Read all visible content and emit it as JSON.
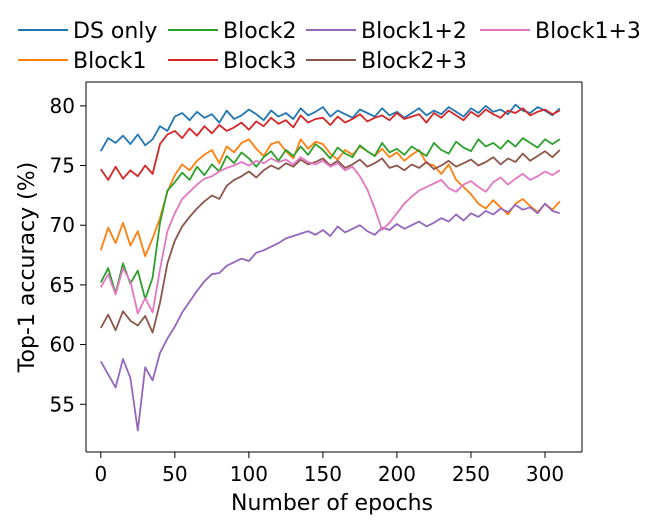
{
  "chart_data": {
    "type": "line",
    "title": "",
    "xlabel": "Number of epochs",
    "ylabel": "Top-1 accuracy (%)",
    "xlim": [
      -10,
      325
    ],
    "ylim": [
      51,
      82
    ],
    "xticks": [
      0,
      50,
      100,
      150,
      200,
      250,
      300
    ],
    "yticks": [
      55,
      60,
      65,
      70,
      75,
      80
    ],
    "grid": false,
    "legend_position": "top",
    "series": [
      {
        "name": "DS only",
        "color": "#1f77b4",
        "x": [
          0,
          5,
          10,
          15,
          20,
          25,
          30,
          35,
          40,
          45,
          50,
          55,
          60,
          65,
          70,
          75,
          80,
          85,
          90,
          95,
          100,
          105,
          110,
          115,
          120,
          125,
          130,
          135,
          140,
          145,
          150,
          155,
          160,
          165,
          170,
          175,
          180,
          185,
          190,
          195,
          200,
          205,
          210,
          215,
          220,
          225,
          230,
          235,
          240,
          245,
          250,
          255,
          260,
          265,
          270,
          275,
          280,
          285,
          290,
          295,
          300,
          305,
          310
        ],
        "y": [
          76.2,
          77.3,
          76.9,
          77.5,
          76.8,
          77.6,
          76.7,
          77.2,
          78.3,
          77.9,
          79.1,
          79.4,
          78.8,
          79.5,
          79.0,
          79.3,
          78.6,
          79.6,
          78.9,
          79.2,
          79.7,
          79.3,
          78.8,
          79.6,
          79.1,
          79.4,
          78.9,
          79.8,
          79.2,
          79.5,
          79.9,
          79.1,
          79.6,
          79.3,
          79.0,
          79.7,
          79.4,
          79.1,
          79.8,
          79.2,
          79.5,
          79.0,
          79.4,
          79.8,
          79.2,
          79.6,
          79.3,
          79.9,
          79.5,
          79.1,
          79.8,
          79.4,
          80.0,
          79.5,
          79.7,
          79.3,
          80.1,
          79.6,
          79.4,
          79.9,
          79.6,
          79.2,
          79.8
        ]
      },
      {
        "name": "Block1",
        "color": "#ff7f0e",
        "x": [
          0,
          5,
          10,
          15,
          20,
          25,
          30,
          35,
          40,
          45,
          50,
          55,
          60,
          65,
          70,
          75,
          80,
          85,
          90,
          95,
          100,
          105,
          110,
          115,
          120,
          125,
          130,
          135,
          140,
          145,
          150,
          155,
          160,
          165,
          170,
          175,
          180,
          185,
          190,
          195,
          200,
          205,
          210,
          215,
          220,
          225,
          230,
          235,
          240,
          245,
          250,
          255,
          260,
          265,
          270,
          275,
          280,
          285,
          290,
          295,
          300,
          305,
          310
        ],
        "y": [
          67.9,
          69.8,
          68.5,
          70.2,
          68.3,
          69.5,
          67.4,
          68.9,
          70.6,
          72.8,
          74.2,
          75.1,
          74.6,
          75.4,
          75.9,
          76.3,
          75.2,
          76.6,
          76.1,
          76.9,
          77.2,
          76.4,
          75.8,
          76.8,
          77.0,
          76.2,
          75.6,
          77.2,
          76.4,
          77.0,
          76.8,
          76.0,
          75.5,
          76.3,
          75.9,
          76.6,
          76.2,
          75.8,
          76.4,
          75.7,
          76.1,
          75.4,
          75.9,
          76.3,
          75.2,
          75.0,
          74.3,
          75.1,
          73.8,
          73.2,
          72.6,
          71.8,
          71.4,
          72.1,
          71.5,
          70.9,
          71.8,
          72.2,
          71.6,
          71.1,
          71.8,
          71.3,
          72.0
        ]
      },
      {
        "name": "Block2",
        "color": "#2ca02c",
        "x": [
          0,
          5,
          10,
          15,
          20,
          25,
          30,
          35,
          40,
          45,
          50,
          55,
          60,
          65,
          70,
          75,
          80,
          85,
          90,
          95,
          100,
          105,
          110,
          115,
          120,
          125,
          130,
          135,
          140,
          145,
          150,
          155,
          160,
          165,
          170,
          175,
          180,
          185,
          190,
          195,
          200,
          205,
          210,
          215,
          220,
          225,
          230,
          235,
          240,
          245,
          250,
          255,
          260,
          265,
          270,
          275,
          280,
          285,
          290,
          295,
          300,
          305,
          310
        ],
        "y": [
          65.2,
          66.4,
          64.3,
          66.8,
          65.1,
          66.2,
          63.8,
          65.6,
          70.2,
          72.9,
          73.6,
          74.4,
          73.8,
          74.9,
          74.2,
          75.1,
          74.5,
          75.8,
          75.2,
          76.1,
          75.6,
          74.9,
          75.7,
          76.2,
          75.4,
          76.3,
          75.8,
          76.6,
          75.9,
          76.8,
          76.3,
          75.6,
          76.5,
          76.0,
          75.7,
          76.7,
          76.2,
          75.8,
          76.9,
          76.1,
          76.4,
          75.9,
          76.6,
          76.2,
          75.8,
          76.9,
          76.3,
          76.0,
          77.0,
          76.5,
          76.2,
          77.2,
          76.6,
          76.9,
          76.4,
          77.1,
          76.6,
          77.3,
          76.9,
          76.5,
          77.2,
          76.8,
          77.2
        ]
      },
      {
        "name": "Block3",
        "color": "#d62728",
        "x": [
          0,
          5,
          10,
          15,
          20,
          25,
          30,
          35,
          40,
          45,
          50,
          55,
          60,
          65,
          70,
          75,
          80,
          85,
          90,
          95,
          100,
          105,
          110,
          115,
          120,
          125,
          130,
          135,
          140,
          145,
          150,
          155,
          160,
          165,
          170,
          175,
          180,
          185,
          190,
          195,
          200,
          205,
          210,
          215,
          220,
          225,
          230,
          235,
          240,
          245,
          250,
          255,
          260,
          265,
          270,
          275,
          280,
          285,
          290,
          295,
          300,
          305,
          310
        ],
        "y": [
          74.7,
          73.8,
          74.9,
          73.9,
          74.6,
          74.1,
          75.0,
          74.3,
          76.8,
          77.6,
          77.9,
          77.3,
          78.1,
          77.5,
          78.3,
          77.7,
          78.4,
          77.9,
          78.2,
          78.6,
          78.0,
          78.7,
          78.3,
          79.0,
          78.5,
          78.8,
          78.2,
          79.2,
          78.6,
          78.9,
          79.0,
          78.4,
          79.1,
          78.6,
          78.9,
          79.3,
          78.7,
          79.0,
          79.2,
          78.8,
          79.4,
          78.9,
          79.1,
          79.3,
          78.6,
          79.4,
          79.0,
          79.6,
          79.2,
          78.8,
          79.5,
          79.1,
          79.7,
          79.3,
          79.0,
          79.6,
          79.4,
          79.8,
          79.2,
          79.5,
          79.7,
          79.3,
          79.6
        ]
      },
      {
        "name": "Block1+2",
        "color": "#9467bd",
        "x": [
          0,
          5,
          10,
          15,
          20,
          25,
          30,
          35,
          40,
          45,
          50,
          55,
          60,
          65,
          70,
          75,
          80,
          85,
          90,
          95,
          100,
          105,
          110,
          115,
          120,
          125,
          130,
          135,
          140,
          145,
          150,
          155,
          160,
          165,
          170,
          175,
          180,
          185,
          190,
          195,
          200,
          205,
          210,
          215,
          220,
          225,
          230,
          235,
          240,
          245,
          250,
          255,
          260,
          265,
          270,
          275,
          280,
          285,
          290,
          295,
          300,
          305,
          310
        ],
        "y": [
          58.6,
          57.5,
          56.4,
          58.8,
          57.2,
          52.8,
          58.1,
          57.0,
          59.3,
          60.5,
          61.5,
          62.7,
          63.6,
          64.5,
          65.3,
          65.9,
          66.0,
          66.6,
          66.9,
          67.2,
          67.0,
          67.7,
          67.9,
          68.2,
          68.5,
          68.9,
          69.1,
          69.3,
          69.5,
          69.2,
          69.6,
          69.1,
          69.9,
          69.4,
          69.7,
          70.0,
          69.5,
          69.2,
          69.8,
          69.6,
          70.1,
          69.7,
          70.0,
          70.3,
          69.9,
          70.2,
          70.6,
          70.3,
          70.9,
          70.4,
          71.0,
          70.7,
          71.2,
          70.9,
          71.4,
          71.1,
          71.7,
          71.3,
          71.5,
          71.0,
          71.8,
          71.2,
          71.0
        ]
      },
      {
        "name": "Block2+3",
        "color": "#8c564b",
        "x": [
          0,
          5,
          10,
          15,
          20,
          25,
          30,
          35,
          40,
          45,
          50,
          55,
          60,
          65,
          70,
          75,
          80,
          85,
          90,
          95,
          100,
          105,
          110,
          115,
          120,
          125,
          130,
          135,
          140,
          145,
          150,
          155,
          160,
          165,
          170,
          175,
          180,
          185,
          190,
          195,
          200,
          205,
          210,
          215,
          220,
          225,
          230,
          235,
          240,
          245,
          250,
          255,
          260,
          265,
          270,
          275,
          280,
          285,
          290,
          295,
          300,
          305,
          310
        ],
        "y": [
          61.4,
          62.5,
          61.2,
          62.8,
          62.0,
          61.6,
          62.4,
          61.0,
          63.5,
          66.8,
          68.7,
          69.9,
          70.7,
          71.4,
          72.0,
          72.5,
          72.2,
          73.3,
          73.8,
          74.1,
          74.5,
          74.0,
          74.6,
          75.0,
          74.7,
          75.2,
          74.9,
          75.5,
          75.1,
          75.3,
          75.6,
          75.0,
          75.4,
          74.8,
          75.1,
          75.5,
          74.9,
          75.2,
          75.6,
          74.8,
          75.0,
          74.6,
          75.1,
          74.8,
          75.3,
          74.7,
          75.0,
          75.4,
          74.9,
          75.2,
          75.5,
          75.0,
          75.3,
          75.7,
          75.1,
          75.6,
          75.3,
          76.0,
          75.4,
          75.8,
          76.2,
          75.7,
          76.3
        ]
      },
      {
        "name": "Block1+3",
        "color": "#e377c2",
        "x": [
          0,
          5,
          10,
          15,
          20,
          25,
          30,
          35,
          40,
          45,
          50,
          55,
          60,
          65,
          70,
          75,
          80,
          85,
          90,
          95,
          100,
          105,
          110,
          115,
          120,
          125,
          130,
          135,
          140,
          145,
          150,
          155,
          160,
          165,
          170,
          175,
          180,
          185,
          190,
          195,
          200,
          205,
          210,
          215,
          220,
          225,
          230,
          235,
          240,
          245,
          250,
          255,
          260,
          265,
          270,
          275,
          280,
          285,
          290,
          295,
          300,
          305,
          310
        ],
        "y": [
          64.8,
          65.9,
          64.2,
          66.4,
          65.3,
          62.6,
          63.9,
          62.7,
          66.3,
          69.5,
          71.0,
          72.2,
          72.8,
          73.4,
          73.9,
          74.1,
          74.5,
          74.8,
          75.0,
          75.3,
          75.0,
          75.4,
          75.2,
          75.6,
          75.3,
          75.5,
          75.1,
          75.7,
          75.3,
          75.1,
          75.4,
          74.9,
          75.2,
          74.6,
          74.9,
          74.1,
          73.0,
          71.4,
          69.6,
          70.2,
          71.0,
          71.8,
          72.4,
          72.9,
          73.2,
          73.5,
          73.8,
          73.1,
          72.8,
          73.4,
          73.7,
          73.2,
          72.8,
          73.6,
          74.0,
          73.4,
          73.9,
          74.3,
          73.8,
          74.1,
          74.5,
          74.2,
          74.6
        ]
      }
    ]
  }
}
